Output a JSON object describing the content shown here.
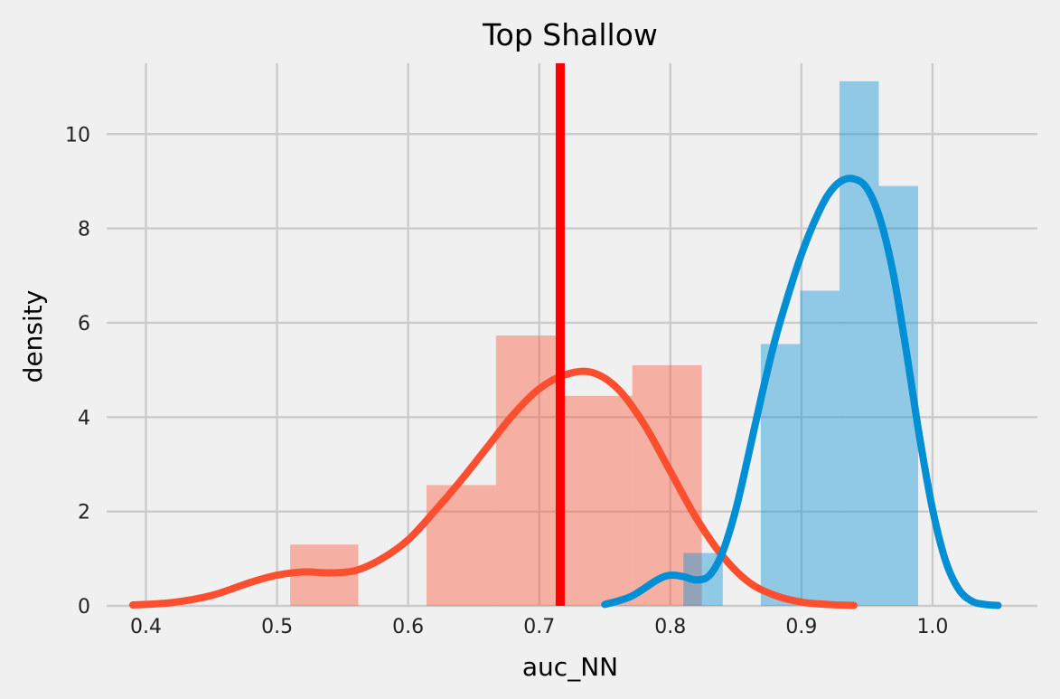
{
  "chart_data": {
    "type": "histogram_kde",
    "title": "Top Shallow",
    "xlabel": "auc_NN",
    "ylabel": "density",
    "xlim": [
      0.37,
      1.08
    ],
    "ylim": [
      0,
      11.5
    ],
    "xticks": [
      "0.4",
      "0.5",
      "0.6",
      "0.7",
      "0.8",
      "0.9",
      "1.0"
    ],
    "yticks": [
      "0",
      "2",
      "4",
      "6",
      "8",
      "10"
    ],
    "grid": true,
    "series": [
      {
        "color": "#fc4f30",
        "histogram": {
          "bins": [
            [
              0.51,
              0.562,
              1.3
            ],
            [
              0.614,
              0.667,
              2.56
            ],
            [
              0.667,
              0.719,
              5.73
            ],
            [
              0.719,
              0.771,
              4.45
            ],
            [
              0.771,
              0.824,
              5.1
            ]
          ]
        },
        "kde": {
          "x": [
            0.39,
            0.42,
            0.45,
            0.48,
            0.5,
            0.52,
            0.54,
            0.56,
            0.58,
            0.6,
            0.62,
            0.64,
            0.66,
            0.68,
            0.7,
            0.72,
            0.74,
            0.76,
            0.78,
            0.8,
            0.82,
            0.84,
            0.86,
            0.88,
            0.9,
            0.92,
            0.94
          ],
          "y": [
            0.02,
            0.07,
            0.22,
            0.5,
            0.65,
            0.72,
            0.7,
            0.75,
            1.0,
            1.4,
            2.0,
            2.65,
            3.35,
            4.05,
            4.6,
            4.9,
            4.95,
            4.6,
            3.85,
            2.85,
            1.85,
            1.05,
            0.5,
            0.22,
            0.08,
            0.03,
            0.01
          ]
        }
      },
      {
        "color": "#008fd5",
        "histogram": {
          "bins": [
            [
              0.81,
              0.84,
              1.12
            ],
            [
              0.869,
              0.899,
              5.55
            ],
            [
              0.899,
              0.929,
              6.68
            ],
            [
              0.929,
              0.959,
              11.12
            ],
            [
              0.959,
              0.989,
              8.9
            ]
          ]
        },
        "kde": {
          "x": [
            0.75,
            0.77,
            0.79,
            0.8,
            0.81,
            0.82,
            0.83,
            0.84,
            0.85,
            0.86,
            0.87,
            0.88,
            0.89,
            0.9,
            0.91,
            0.92,
            0.93,
            0.94,
            0.95,
            0.96,
            0.97,
            0.98,
            0.99,
            1.0,
            1.01,
            1.02,
            1.03,
            1.04,
            1.05
          ],
          "y": [
            0.03,
            0.2,
            0.55,
            0.65,
            0.62,
            0.55,
            0.65,
            1.15,
            2.05,
            3.25,
            4.5,
            5.65,
            6.6,
            7.45,
            8.15,
            8.7,
            9.0,
            9.05,
            8.85,
            8.2,
            7.05,
            5.4,
            3.6,
            2.05,
            0.95,
            0.35,
            0.1,
            0.03,
            0.01
          ]
        }
      }
    ],
    "vline": {
      "x": 0.716,
      "color": "#ff0000"
    }
  }
}
